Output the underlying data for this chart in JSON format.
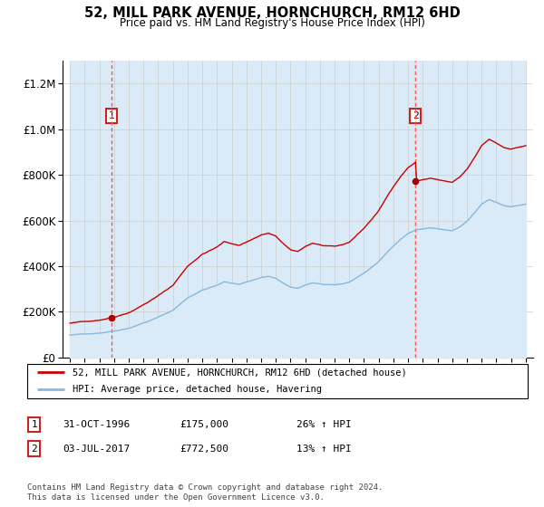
{
  "title": "52, MILL PARK AVENUE, HORNCHURCH, RM12 6HD",
  "subtitle": "Price paid vs. HM Land Registry's House Price Index (HPI)",
  "legend_line1": "52, MILL PARK AVENUE, HORNCHURCH, RM12 6HD (detached house)",
  "legend_line2": "HPI: Average price, detached house, Havering",
  "footnote": "Contains HM Land Registry data © Crown copyright and database right 2024.\nThis data is licensed under the Open Government Licence v3.0.",
  "transaction1_date": "31-OCT-1996",
  "transaction1_price": "£175,000",
  "transaction1_hpi": "26% ↑ HPI",
  "transaction2_date": "03-JUL-2017",
  "transaction2_price": "£772,500",
  "transaction2_hpi": "13% ↑ HPI",
  "sale1_year": 1996.83,
  "sale1_price": 175000,
  "sale2_year": 2017.5,
  "sale2_price": 772500,
  "ylim": [
    0,
    1300000
  ],
  "xlim_start": 1993.5,
  "xlim_end": 2025.5,
  "hpi_line_color": "#88b8dd",
  "price_color": "#cc0000",
  "hpi_fill_color": "#daeaf6",
  "grid_color": "#cccccc",
  "dashed_line_color": "#ff5555",
  "marker_color": "#aa0000",
  "hatch_color": "#d0d0d0",
  "box_edge_color": "#cc2222"
}
